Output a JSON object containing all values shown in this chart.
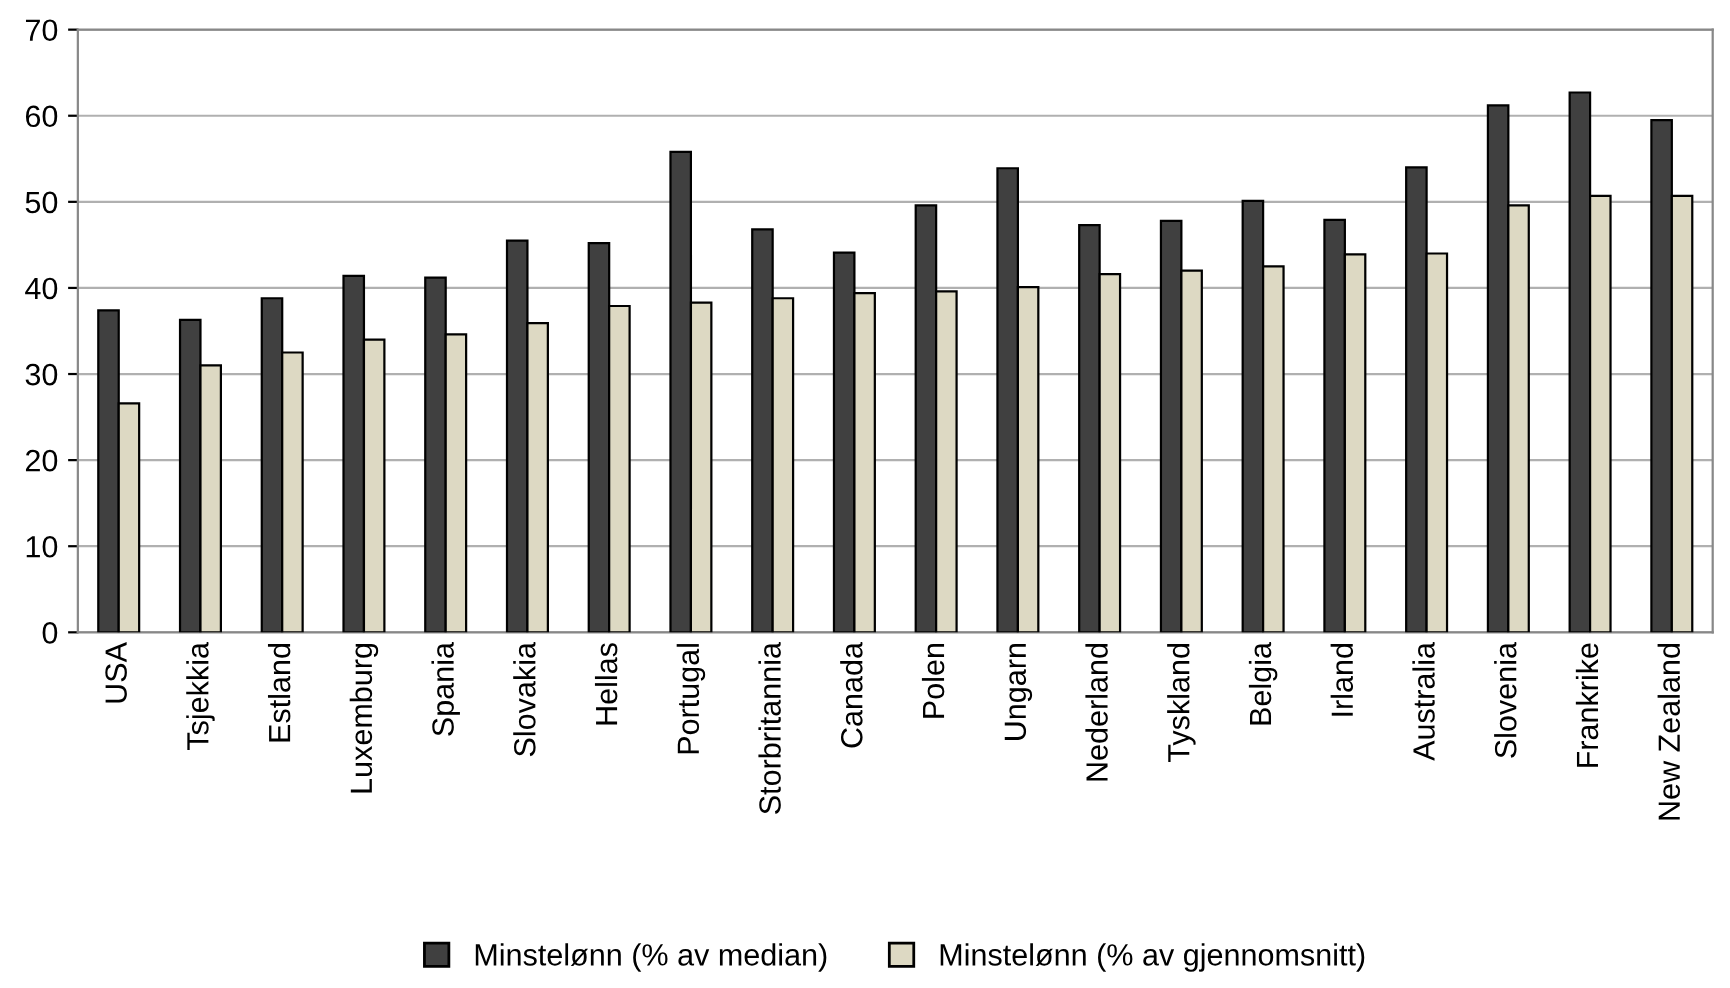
{
  "chart_data": {
    "type": "bar",
    "categories": [
      "USA",
      "Tsjekkia",
      "Estland",
      "Luxemburg",
      "Spania",
      "Slovakia",
      "Hellas",
      "Portugal",
      "Storbritannia",
      "Canada",
      "Polen",
      "Ungarn",
      "Nederland",
      "Tyskland",
      "Belgia",
      "Irland",
      "Australia",
      "Slovenia",
      "Frankrike",
      "New Zealand"
    ],
    "series": [
      {
        "name": "Minstelønn (% av median)",
        "color": "#404040",
        "values": [
          37.4,
          36.3,
          38.8,
          41.4,
          41.2,
          45.5,
          45.2,
          55.8,
          46.8,
          44.1,
          49.6,
          53.9,
          47.3,
          47.8,
          50.1,
          47.9,
          54.0,
          61.2,
          62.7,
          59.5
        ]
      },
      {
        "name": "Minstelønn (% av gjennomsnitt)",
        "color": "#ddd9c3",
        "values": [
          26.6,
          31.0,
          32.5,
          34.0,
          34.6,
          35.9,
          37.9,
          38.3,
          38.8,
          39.4,
          39.6,
          40.1,
          41.6,
          42.0,
          42.5,
          43.9,
          44.0,
          49.6,
          50.7,
          50.7
        ]
      }
    ],
    "ylim": [
      0,
      70
    ],
    "yticks": [
      0,
      10,
      20,
      30,
      40,
      50,
      60,
      70
    ],
    "grid": "y",
    "legend": "bottom"
  }
}
